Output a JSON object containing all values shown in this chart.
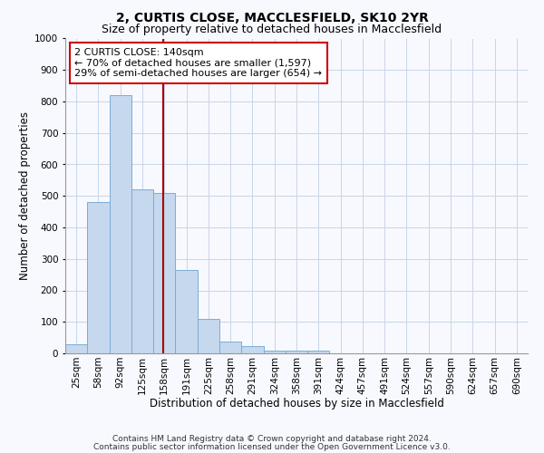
{
  "title1": "2, CURTIS CLOSE, MACCLESFIELD, SK10 2YR",
  "title2": "Size of property relative to detached houses in Macclesfield",
  "xlabel": "Distribution of detached houses by size in Macclesfield",
  "ylabel": "Number of detached properties",
  "categories": [
    "25sqm",
    "58sqm",
    "92sqm",
    "125sqm",
    "158sqm",
    "191sqm",
    "225sqm",
    "258sqm",
    "291sqm",
    "324sqm",
    "358sqm",
    "391sqm",
    "424sqm",
    "457sqm",
    "491sqm",
    "524sqm",
    "557sqm",
    "590sqm",
    "624sqm",
    "657sqm",
    "690sqm"
  ],
  "values": [
    30,
    480,
    820,
    520,
    510,
    265,
    110,
    38,
    22,
    10,
    8,
    10,
    0,
    0,
    0,
    0,
    0,
    0,
    0,
    0,
    0
  ],
  "bar_color": "#c5d8ee",
  "bar_edge_color": "#7aadd4",
  "vline_color": "#aa0000",
  "ylim": [
    0,
    1000
  ],
  "annotation_box_text": "2 CURTIS CLOSE: 140sqm\n← 70% of detached houses are smaller (1,597)\n29% of semi-detached houses are larger (654) →",
  "annotation_box_color": "#cc0000",
  "annotation_fill_color": "#ffffff",
  "footnote1": "Contains HM Land Registry data © Crown copyright and database right 2024.",
  "footnote2": "Contains public sector information licensed under the Open Government Licence v3.0.",
  "background_color": "#f8f9ff",
  "grid_color": "#c8d4e8",
  "title1_fontsize": 10,
  "title2_fontsize": 9,
  "xlabel_fontsize": 8.5,
  "ylabel_fontsize": 8.5,
  "tick_fontsize": 7.5,
  "annot_fontsize": 8
}
